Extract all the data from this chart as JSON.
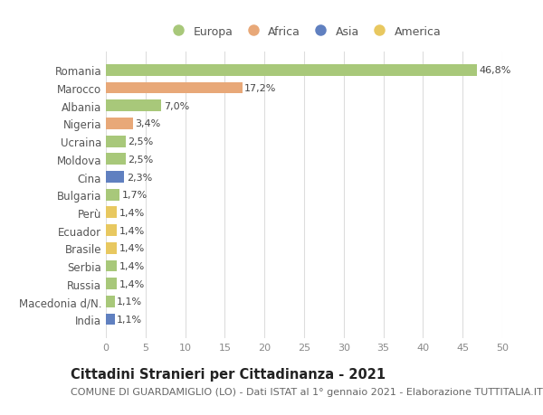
{
  "countries": [
    "Romania",
    "Marocco",
    "Albania",
    "Nigeria",
    "Ucraina",
    "Moldova",
    "Cina",
    "Bulgaria",
    "Perù",
    "Ecuador",
    "Brasile",
    "Serbia",
    "Russia",
    "Macedonia d/N.",
    "India"
  ],
  "values": [
    46.8,
    17.2,
    7.0,
    3.4,
    2.5,
    2.5,
    2.3,
    1.7,
    1.4,
    1.4,
    1.4,
    1.4,
    1.4,
    1.1,
    1.1
  ],
  "labels": [
    "46,8%",
    "17,2%",
    "7,0%",
    "3,4%",
    "2,5%",
    "2,5%",
    "2,3%",
    "1,7%",
    "1,4%",
    "1,4%",
    "1,4%",
    "1,4%",
    "1,4%",
    "1,1%",
    "1,1%"
  ],
  "continents": [
    "Europa",
    "Africa",
    "Europa",
    "Africa",
    "Europa",
    "Europa",
    "Asia",
    "Europa",
    "America",
    "America",
    "America",
    "Europa",
    "Europa",
    "Europa",
    "Asia"
  ],
  "colors": {
    "Europa": "#a8c87a",
    "Africa": "#e8a878",
    "Asia": "#6080c0",
    "America": "#e8c860"
  },
  "legend_order": [
    "Europa",
    "Africa",
    "Asia",
    "America"
  ],
  "xlim": [
    0,
    50
  ],
  "xticks": [
    0,
    5,
    10,
    15,
    20,
    25,
    30,
    35,
    40,
    45,
    50
  ],
  "title": "Cittadini Stranieri per Cittadinanza - 2021",
  "subtitle": "COMUNE DI GUARDAMIGLIO (LO) - Dati ISTAT al 1° gennaio 2021 - Elaborazione TUTTITALIA.IT",
  "background_color": "#ffffff",
  "grid_color": "#dddddd",
  "bar_height": 0.65,
  "label_fontsize": 8,
  "ytick_fontsize": 8.5,
  "xtick_fontsize": 8,
  "title_fontsize": 10.5,
  "subtitle_fontsize": 8,
  "legend_fontsize": 9
}
